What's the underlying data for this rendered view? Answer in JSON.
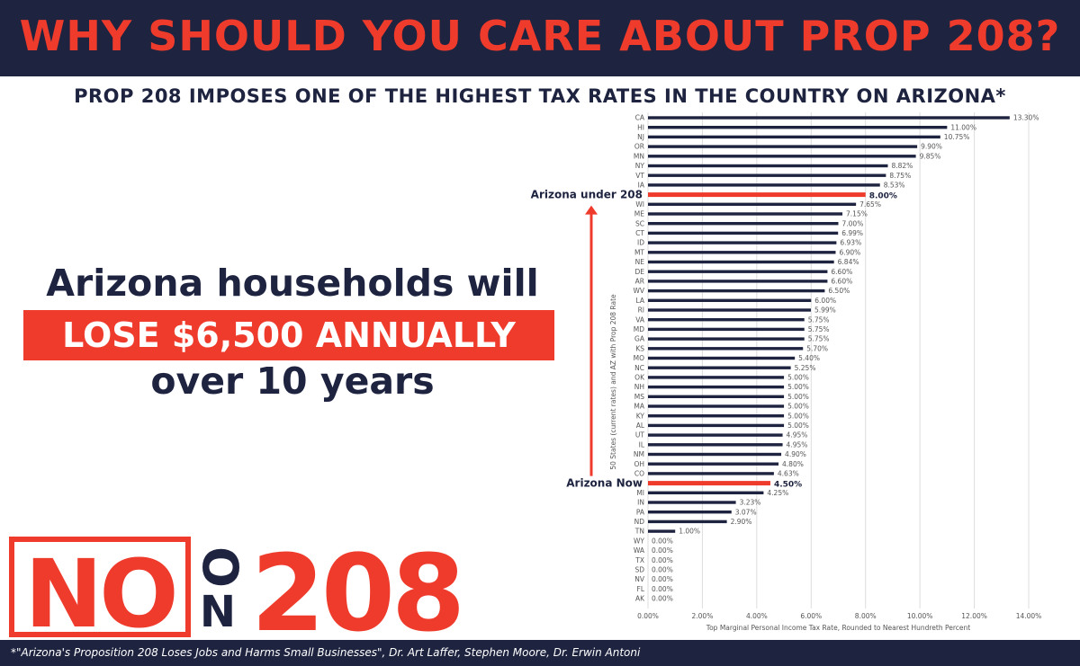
{
  "header": {
    "title": "WHY SHOULD YOU CARE ABOUT PROP 208?",
    "subtitle": "PROP 208 IMPOSES ONE OF THE HIGHEST TAX RATES IN THE COUNTRY ON ARIZONA*"
  },
  "headline": {
    "line1": "Arizona households will",
    "highlight": "LOSE $6,500 ANNUALLY",
    "line3": "over 10 years"
  },
  "logo": {
    "no": "NO",
    "o": "O",
    "n": "N",
    "number": "208"
  },
  "footer": {
    "text": "*\"Arizona's Proposition 208 Loses Jobs and Harms Small Businesses\", Dr. Art Laffer, Stephen Moore, Dr. Erwin Antoni"
  },
  "colors": {
    "navy": "#1e2340",
    "red": "#ef3b2c",
    "white": "#ffffff",
    "grid": "#dddddd"
  },
  "chart_data": {
    "type": "bar",
    "orientation": "horizontal",
    "title": "",
    "xlabel": "Top Marginal Personal Income Tax Rate, Rounded to Nearest Hundreth Percent",
    "ylabel": "50 States (current rates) and AZ with Prop 208 Rate",
    "xlim": [
      0,
      14
    ],
    "xticks": [
      "0.00%",
      "2.00%",
      "4.00%",
      "6.00%",
      "8.00%",
      "10.00%",
      "12.00%",
      "14.00%"
    ],
    "grid": true,
    "categories": [
      "CA",
      "HI",
      "NJ",
      "OR",
      "MN",
      "NY",
      "VT",
      "IA",
      "Arizona under 208",
      "WI",
      "ME",
      "SC",
      "CT",
      "ID",
      "MT",
      "NE",
      "DE",
      "AR",
      "WV",
      "LA",
      "RI",
      "VA",
      "MD",
      "GA",
      "KS",
      "MO",
      "NC",
      "OK",
      "NH",
      "MS",
      "MA",
      "KY",
      "AL",
      "UT",
      "IL",
      "NM",
      "OH",
      "CO",
      "Arizona Now",
      "MI",
      "IN",
      "PA",
      "ND",
      "TN",
      "WY",
      "WA",
      "TX",
      "SD",
      "NV",
      "FL",
      "AK"
    ],
    "values": [
      13.3,
      11.0,
      10.75,
      9.9,
      9.85,
      8.82,
      8.75,
      8.53,
      8.0,
      7.65,
      7.15,
      7.0,
      6.99,
      6.93,
      6.9,
      6.84,
      6.6,
      6.6,
      6.5,
      6.0,
      5.99,
      5.75,
      5.75,
      5.75,
      5.7,
      5.4,
      5.25,
      5.0,
      5.0,
      5.0,
      5.0,
      5.0,
      5.0,
      4.95,
      4.95,
      4.9,
      4.8,
      4.63,
      4.5,
      4.25,
      3.23,
      3.07,
      2.9,
      1.0,
      0.0,
      0.0,
      0.0,
      0.0,
      0.0,
      0.0,
      0.0
    ],
    "value_labels": [
      "13.30%",
      "11.00%",
      "10.75%",
      "9.90%",
      "9.85%",
      "8.82%",
      "8.75%",
      "8.53%",
      "8.00%",
      "7.65%",
      "7.15%",
      "7.00%",
      "6.99%",
      "6.93%",
      "6.90%",
      "6.84%",
      "6.60%",
      "6.60%",
      "6.50%",
      "6.00%",
      "5.99%",
      "5.75%",
      "5.75%",
      "5.75%",
      "5.70%",
      "5.40%",
      "5.25%",
      "5.00%",
      "5.00%",
      "5.00%",
      "5.00%",
      "5.00%",
      "5.00%",
      "4.95%",
      "4.95%",
      "4.90%",
      "4.80%",
      "4.63%",
      "4.50%",
      "4.25%",
      "3.23%",
      "3.07%",
      "2.90%",
      "1.00%",
      "0.00%",
      "0.00%",
      "0.00%",
      "0.00%",
      "0.00%",
      "0.00%",
      "0.00%"
    ],
    "highlighted": [
      "Arizona under 208",
      "Arizona Now"
    ]
  }
}
